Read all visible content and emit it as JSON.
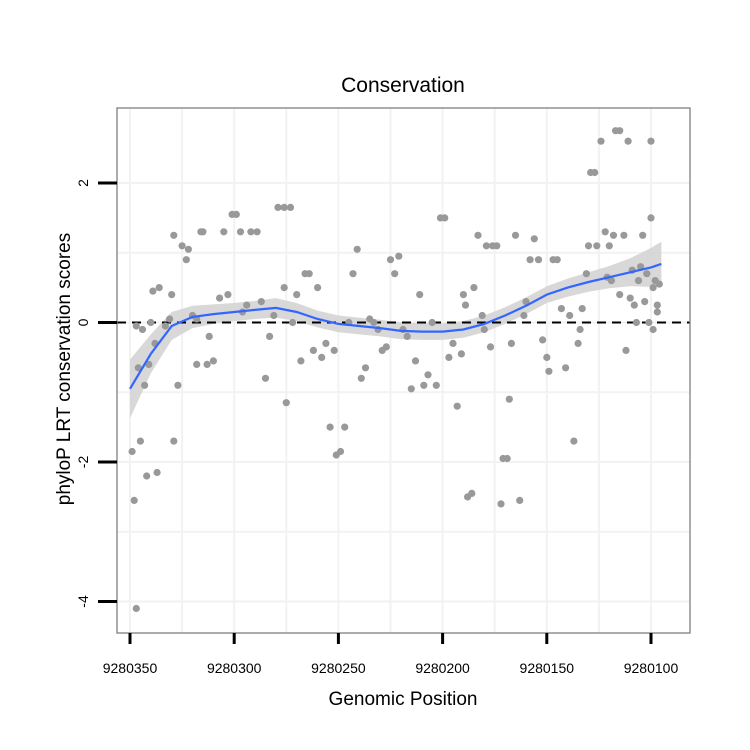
{
  "chart_data": {
    "type": "scatter",
    "title": "Conservation",
    "xlabel": "Genomic Position",
    "ylabel": "phyloP LRT conservation scores",
    "x_reversed": true,
    "xlim": [
      9280350,
      9280095
    ],
    "ylim": [
      -4.4,
      3.1
    ],
    "xticks": [
      9280350,
      9280300,
      9280250,
      9280200,
      9280150,
      9280100
    ],
    "xtick_labels": [
      "9280350",
      "9280300",
      "9280250",
      "9280200",
      "9280150",
      "9280100"
    ],
    "yticks": [
      -4,
      -2,
      0,
      2
    ],
    "ytick_labels": [
      "-4",
      "-2",
      "0",
      "2"
    ],
    "grid": true,
    "reference_line": {
      "y": 0,
      "style": "dashed",
      "color": "#000000"
    },
    "colors": {
      "points": "#999999",
      "smooth_line": "#3366ff",
      "ribbon": "#d4d4d4",
      "grid": "#f2f2f2",
      "panel_border": "#7f7f7f"
    },
    "points": [
      [
        9280347,
        -4.1
      ],
      [
        9280348,
        -2.55
      ],
      [
        9280345,
        -1.7
      ],
      [
        9280342,
        -2.2
      ],
      [
        9280337,
        -2.15
      ],
      [
        9280349,
        -1.85
      ],
      [
        9280343,
        -0.9
      ],
      [
        9280341,
        -0.6
      ],
      [
        9280338,
        -0.3
      ],
      [
        9280346,
        -0.65
      ],
      [
        9280344,
        -0.1
      ],
      [
        9280347,
        -0.05
      ],
      [
        9280340,
        0.0
      ],
      [
        9280339,
        0.45
      ],
      [
        9280336,
        0.5
      ],
      [
        9280333,
        -0.05
      ],
      [
        9280331,
        0.05
      ],
      [
        9280330,
        0.4
      ],
      [
        9280329,
        1.25
      ],
      [
        9280327,
        -0.9
      ],
      [
        9280329,
        -1.7
      ],
      [
        9280325,
        1.1
      ],
      [
        9280322,
        1.05
      ],
      [
        9280323,
        0.9
      ],
      [
        9280320,
        0.1
      ],
      [
        9280318,
        0.05
      ],
      [
        9280316,
        1.3
      ],
      [
        9280315,
        1.3
      ],
      [
        9280313,
        -0.6
      ],
      [
        9280318,
        -0.6
      ],
      [
        9280312,
        -0.2
      ],
      [
        9280310,
        -0.55
      ],
      [
        9280307,
        0.35
      ],
      [
        9280305,
        1.3
      ],
      [
        9280303,
        0.4
      ],
      [
        9280301,
        1.55
      ],
      [
        9280299,
        1.55
      ],
      [
        9280297,
        1.3
      ],
      [
        9280296,
        0.15
      ],
      [
        9280294,
        0.25
      ],
      [
        9280292,
        1.3
      ],
      [
        9280289,
        1.3
      ],
      [
        9280287,
        0.3
      ],
      [
        9280285,
        -0.8
      ],
      [
        9280283,
        -0.2
      ],
      [
        9280281,
        0.1
      ],
      [
        9280279,
        1.65
      ],
      [
        9280276,
        1.65
      ],
      [
        9280273,
        1.65
      ],
      [
        9280276,
        0.5
      ],
      [
        9280275,
        -1.15
      ],
      [
        9280272,
        0.0
      ],
      [
        9280270,
        0.4
      ],
      [
        9280268,
        -0.55
      ],
      [
        9280266,
        0.7
      ],
      [
        9280264,
        0.7
      ],
      [
        9280262,
        -0.4
      ],
      [
        9280260,
        0.5
      ],
      [
        9280258,
        -0.5
      ],
      [
        9280256,
        -0.3
      ],
      [
        9280254,
        -1.5
      ],
      [
        9280252,
        -0.4
      ],
      [
        9280251,
        -1.9
      ],
      [
        9280249,
        -1.85
      ],
      [
        9280247,
        -1.5
      ],
      [
        9280245,
        0.0
      ],
      [
        9280243,
        0.7
      ],
      [
        9280241,
        1.05
      ],
      [
        9280239,
        -0.8
      ],
      [
        9280237,
        -0.65
      ],
      [
        9280235,
        0.05
      ],
      [
        9280233,
        0.0
      ],
      [
        9280231,
        -0.1
      ],
      [
        9280229,
        -0.4
      ],
      [
        9280227,
        -0.35
      ],
      [
        9280225,
        0.9
      ],
      [
        9280223,
        0.7
      ],
      [
        9280221,
        0.95
      ],
      [
        9280219,
        -0.1
      ],
      [
        9280217,
        -0.2
      ],
      [
        9280215,
        -0.95
      ],
      [
        9280213,
        -0.55
      ],
      [
        9280211,
        0.4
      ],
      [
        9280209,
        -0.9
      ],
      [
        9280207,
        -0.75
      ],
      [
        9280205,
        0.0
      ],
      [
        9280203,
        -0.9
      ],
      [
        9280201,
        1.5
      ],
      [
        9280199,
        1.5
      ],
      [
        9280197,
        -0.5
      ],
      [
        9280195,
        -0.3
      ],
      [
        9280193,
        -1.2
      ],
      [
        9280191,
        -0.45
      ],
      [
        9280190,
        0.4
      ],
      [
        9280189,
        0.25
      ],
      [
        9280188,
        -2.5
      ],
      [
        9280186,
        -2.45
      ],
      [
        9280185,
        0.5
      ],
      [
        9280183,
        1.25
      ],
      [
        9280181,
        0.1
      ],
      [
        9280180,
        -0.1
      ],
      [
        9280179,
        1.1
      ],
      [
        9280177,
        -0.35
      ],
      [
        9280176,
        1.1
      ],
      [
        9280174,
        1.1
      ],
      [
        9280172,
        -2.6
      ],
      [
        9280171,
        -1.95
      ],
      [
        9280169,
        -1.95
      ],
      [
        9280168,
        -1.1
      ],
      [
        9280167,
        -0.3
      ],
      [
        9280165,
        1.25
      ],
      [
        9280163,
        -2.55
      ],
      [
        9280161,
        0.1
      ],
      [
        9280160,
        0.3
      ],
      [
        9280158,
        0.9
      ],
      [
        9280156,
        1.2
      ],
      [
        9280154,
        0.9
      ],
      [
        9280152,
        -0.25
      ],
      [
        9280150,
        -0.5
      ],
      [
        9280149,
        -0.7
      ],
      [
        9280147,
        0.9
      ],
      [
        9280145,
        0.9
      ],
      [
        9280143,
        0.2
      ],
      [
        9280141,
        -0.65
      ],
      [
        9280139,
        0.1
      ],
      [
        9280137,
        -1.7
      ],
      [
        9280135,
        -0.3
      ],
      [
        9280134,
        -0.1
      ],
      [
        9280133,
        0.2
      ],
      [
        9280131,
        0.7
      ],
      [
        9280130,
        1.1
      ],
      [
        9280129,
        2.15
      ],
      [
        9280127,
        2.15
      ],
      [
        9280126,
        1.1
      ],
      [
        9280124,
        2.6
      ],
      [
        9280122,
        1.3
      ],
      [
        9280121,
        0.65
      ],
      [
        9280120,
        1.1
      ],
      [
        9280118,
        1.25
      ],
      [
        9280117,
        2.75
      ],
      [
        9280115,
        2.75
      ],
      [
        9280113,
        1.25
      ],
      [
        9280111,
        2.6
      ],
      [
        9280109,
        0.75
      ],
      [
        9280108,
        0.25
      ],
      [
        9280106,
        0.6
      ],
      [
        9280104,
        1.25
      ],
      [
        9280102,
        0.7
      ],
      [
        9280100,
        2.6
      ],
      [
        9280099,
        0.5
      ],
      [
        9280097,
        0.25
      ],
      [
        9280096,
        0.55
      ],
      [
        9280119,
        0.6
      ],
      [
        9280115,
        0.4
      ],
      [
        9280112,
        -0.4
      ],
      [
        9280110,
        0.35
      ],
      [
        9280107,
        0.0
      ],
      [
        9280105,
        0.8
      ],
      [
        9280103,
        0.3
      ],
      [
        9280101,
        0.0
      ],
      [
        9280100,
        1.5
      ],
      [
        9280099,
        -0.1
      ],
      [
        9280098,
        0.6
      ],
      [
        9280097,
        0.15
      ]
    ],
    "smooth": [
      [
        9280350,
        -0.95
      ],
      [
        9280340,
        -0.45
      ],
      [
        9280330,
        -0.05
      ],
      [
        9280320,
        0.08
      ],
      [
        9280310,
        0.12
      ],
      [
        9280300,
        0.15
      ],
      [
        9280290,
        0.18
      ],
      [
        9280280,
        0.21
      ],
      [
        9280270,
        0.15
      ],
      [
        9280260,
        0.05
      ],
      [
        9280250,
        -0.02
      ],
      [
        9280240,
        -0.05
      ],
      [
        9280230,
        -0.08
      ],
      [
        9280220,
        -0.12
      ],
      [
        9280210,
        -0.13
      ],
      [
        9280200,
        -0.13
      ],
      [
        9280190,
        -0.1
      ],
      [
        9280180,
        -0.02
      ],
      [
        9280170,
        0.1
      ],
      [
        9280160,
        0.24
      ],
      [
        9280150,
        0.4
      ],
      [
        9280140,
        0.5
      ],
      [
        9280130,
        0.58
      ],
      [
        9280120,
        0.65
      ],
      [
        9280110,
        0.72
      ],
      [
        9280100,
        0.79
      ],
      [
        9280095,
        0.84
      ]
    ],
    "smooth_se": [
      0.42,
      0.28,
      0.2,
      0.16,
      0.14,
      0.13,
      0.13,
      0.14,
      0.13,
      0.12,
      0.12,
      0.12,
      0.12,
      0.12,
      0.12,
      0.12,
      0.12,
      0.12,
      0.12,
      0.12,
      0.12,
      0.13,
      0.14,
      0.16,
      0.2,
      0.28,
      0.32
    ]
  }
}
